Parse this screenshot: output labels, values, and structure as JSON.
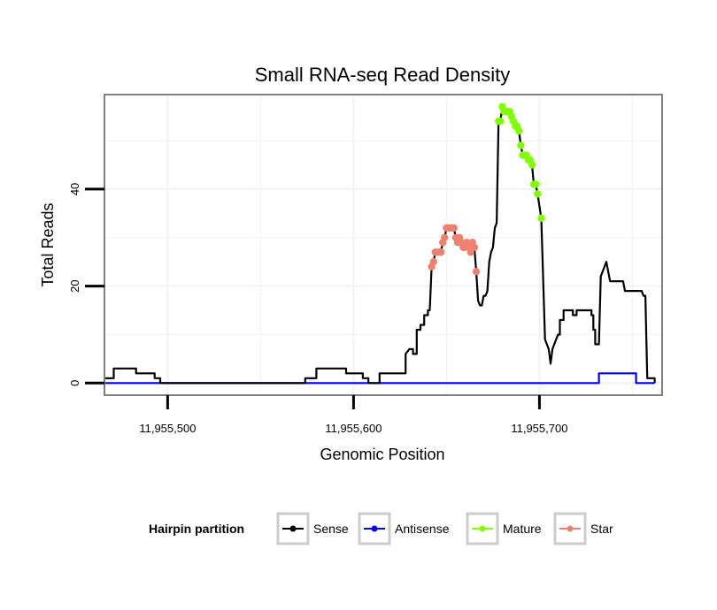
{
  "chart_data": {
    "type": "line",
    "title": "Small RNA-seq Read Density",
    "xlabel": "Genomic Position",
    "ylabel": "Total Reads",
    "xlim": [
      11955466,
      11955766
    ],
    "ylim": [
      -2.5,
      59.5
    ],
    "x_ticks": [
      11955500,
      11955600,
      11955700
    ],
    "x_tick_labels": [
      "11,955,500",
      "11,955,600",
      "11,955,700"
    ],
    "y_ticks": [
      0,
      20,
      40
    ],
    "y_tick_labels": [
      "0",
      "20",
      "40"
    ],
    "grid": true,
    "legend": {
      "title": "Hairpin partition",
      "position": "bottom",
      "entries": [
        {
          "name": "Sense",
          "color": "#000000"
        },
        {
          "name": "Antisense",
          "color": "#0000ff"
        },
        {
          "name": "Mature",
          "color": "#7fff00"
        },
        {
          "name": "Star",
          "color": "#f08070"
        }
      ]
    },
    "series": [
      {
        "name": "Sense",
        "color": "#000000",
        "points": [
          [
            11955466,
            1
          ],
          [
            11955467,
            1
          ],
          [
            11955471,
            1
          ],
          [
            11955471,
            3
          ],
          [
            11955483,
            3
          ],
          [
            11955483,
            2
          ],
          [
            11955493,
            2
          ],
          [
            11955493,
            1
          ],
          [
            11955496,
            1
          ],
          [
            11955496,
            0
          ],
          [
            11955574,
            0
          ],
          [
            11955574,
            1
          ],
          [
            11955580,
            1
          ],
          [
            11955580,
            3
          ],
          [
            11955596,
            3
          ],
          [
            11955596,
            2
          ],
          [
            11955605,
            2
          ],
          [
            11955605,
            1
          ],
          [
            11955608,
            1
          ],
          [
            11955608,
            0
          ],
          [
            11955614,
            0
          ],
          [
            11955614,
            2
          ],
          [
            11955628,
            2
          ],
          [
            11955628,
            6
          ],
          [
            11955630,
            7
          ],
          [
            11955632,
            7
          ],
          [
            11955632,
            6
          ],
          [
            11955634,
            6
          ],
          [
            11955634,
            11
          ],
          [
            11955636,
            11
          ],
          [
            11955636,
            12
          ],
          [
            11955638,
            12
          ],
          [
            11955638,
            14
          ],
          [
            11955640,
            14
          ],
          [
            11955640,
            15
          ],
          [
            11955641,
            15
          ],
          [
            11955642,
            24
          ],
          [
            11955643,
            25
          ],
          [
            11955644,
            27
          ],
          [
            11955646,
            27
          ],
          [
            11955647,
            27
          ],
          [
            11955648,
            29
          ],
          [
            11955649,
            30
          ],
          [
            11955650,
            32
          ],
          [
            11955651,
            32
          ],
          [
            11955652,
            32
          ],
          [
            11955653,
            32
          ],
          [
            11955654,
            32
          ],
          [
            11955655,
            30
          ],
          [
            11955656,
            29
          ],
          [
            11955657,
            30
          ],
          [
            11955658,
            29
          ],
          [
            11955659,
            28
          ],
          [
            11955660,
            28
          ],
          [
            11955661,
            29
          ],
          [
            11955662,
            28
          ],
          [
            11955663,
            27
          ],
          [
            11955664,
            29
          ],
          [
            11955665,
            28
          ],
          [
            11955666,
            23
          ],
          [
            11955667,
            17
          ],
          [
            11955668,
            16
          ],
          [
            11955669,
            16
          ],
          [
            11955670,
            18
          ],
          [
            11955671,
            18
          ],
          [
            11955672,
            19
          ],
          [
            11955673,
            25
          ],
          [
            11955674,
            27
          ],
          [
            11955675,
            28
          ],
          [
            11955676,
            32
          ],
          [
            11955677,
            33
          ],
          [
            11955678,
            54
          ],
          [
            11955679,
            54
          ],
          [
            11955680,
            57
          ],
          [
            11955681,
            56
          ],
          [
            11955682,
            56
          ],
          [
            11955683,
            56
          ],
          [
            11955684,
            56
          ],
          [
            11955685,
            55
          ],
          [
            11955686,
            54
          ],
          [
            11955687,
            53
          ],
          [
            11955688,
            53
          ],
          [
            11955689,
            52
          ],
          [
            11955690,
            49
          ],
          [
            11955691,
            47
          ],
          [
            11955692,
            47
          ],
          [
            11955693,
            47
          ],
          [
            11955694,
            46
          ],
          [
            11955695,
            46
          ],
          [
            11955696,
            45
          ],
          [
            11955697,
            41
          ],
          [
            11955698,
            41
          ],
          [
            11955699,
            39
          ],
          [
            11955701,
            34
          ],
          [
            11955703,
            9
          ],
          [
            11955705,
            7
          ],
          [
            11955706,
            4
          ],
          [
            11955707,
            7
          ],
          [
            11955709,
            9
          ],
          [
            11955710,
            10
          ],
          [
            11955711,
            10
          ],
          [
            11955711,
            13
          ],
          [
            11955713,
            13
          ],
          [
            11955713,
            15
          ],
          [
            11955718,
            15
          ],
          [
            11955718,
            14
          ],
          [
            11955720,
            14
          ],
          [
            11955720,
            15
          ],
          [
            11955728,
            15
          ],
          [
            11955728,
            14
          ],
          [
            11955729,
            14
          ],
          [
            11955729,
            11
          ],
          [
            11955730,
            11
          ],
          [
            11955730,
            8
          ],
          [
            11955732,
            8
          ],
          [
            11955733,
            22
          ],
          [
            11955734,
            23
          ],
          [
            11955736,
            25
          ],
          [
            11955737,
            23
          ],
          [
            11955738,
            21
          ],
          [
            11955745,
            21
          ],
          [
            11955746,
            19
          ],
          [
            11955755,
            19
          ],
          [
            11955756,
            18
          ],
          [
            11955757,
            18
          ],
          [
            11955758,
            1
          ],
          [
            11955762,
            1
          ],
          [
            11955762,
            0
          ]
        ]
      },
      {
        "name": "Antisense",
        "color": "#0000ff",
        "points": [
          [
            11955466,
            0
          ],
          [
            11955732,
            0
          ],
          [
            11955732,
            2
          ],
          [
            11955752,
            2
          ],
          [
            11955752,
            0
          ],
          [
            11955762,
            0
          ]
        ]
      },
      {
        "name": "Mature",
        "color": "#7fff00",
        "points": [
          [
            11955678,
            54
          ],
          [
            11955679,
            54
          ],
          [
            11955680,
            57
          ],
          [
            11955681,
            56
          ],
          [
            11955682,
            56
          ],
          [
            11955683,
            56
          ],
          [
            11955684,
            56
          ],
          [
            11955685,
            55
          ],
          [
            11955686,
            54
          ],
          [
            11955687,
            53
          ],
          [
            11955688,
            53
          ],
          [
            11955689,
            52
          ],
          [
            11955690,
            49
          ],
          [
            11955691,
            47
          ],
          [
            11955692,
            47
          ],
          [
            11955693,
            47
          ],
          [
            11955694,
            46
          ],
          [
            11955695,
            46
          ],
          [
            11955696,
            45
          ],
          [
            11955697,
            41
          ],
          [
            11955698,
            41
          ],
          [
            11955699,
            39
          ],
          [
            11955701,
            34
          ]
        ]
      },
      {
        "name": "Star",
        "color": "#f08070",
        "points": [
          [
            11955642,
            24
          ],
          [
            11955643,
            25
          ],
          [
            11955644,
            27
          ],
          [
            11955646,
            27
          ],
          [
            11955647,
            27
          ],
          [
            11955648,
            29
          ],
          [
            11955649,
            30
          ],
          [
            11955650,
            32
          ],
          [
            11955651,
            32
          ],
          [
            11955652,
            32
          ],
          [
            11955653,
            32
          ],
          [
            11955654,
            32
          ],
          [
            11955655,
            30
          ],
          [
            11955656,
            29
          ],
          [
            11955657,
            30
          ],
          [
            11955658,
            29
          ],
          [
            11955659,
            28
          ],
          [
            11955660,
            28
          ],
          [
            11955661,
            29
          ],
          [
            11955662,
            28
          ],
          [
            11955663,
            27
          ],
          [
            11955664,
            29
          ],
          [
            11955665,
            28
          ],
          [
            11955666,
            23
          ]
        ]
      }
    ]
  }
}
